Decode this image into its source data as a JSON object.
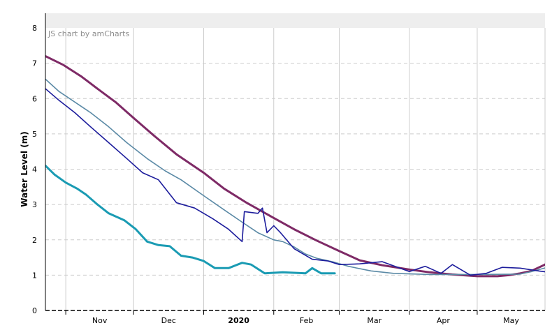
{
  "credit": "JS chart by amCharts",
  "chart_data": {
    "type": "line",
    "title": "",
    "xlabel": "",
    "ylabel": "Water Level (m)",
    "ylim": [
      0,
      8
    ],
    "yticks": [
      0,
      1,
      2,
      3,
      4,
      5,
      6,
      7,
      8
    ],
    "xlim": [
      "2019-10-23",
      "2020-05-31"
    ],
    "xticks": [
      {
        "date": "2019-11-01",
        "label": "Nov",
        "bold": false
      },
      {
        "date": "2019-12-01",
        "label": "Dec",
        "bold": false
      },
      {
        "date": "2020-01-01",
        "label": "2020",
        "bold": true
      },
      {
        "date": "2020-02-01",
        "label": "Feb",
        "bold": false
      },
      {
        "date": "2020-03-01",
        "label": "Mar",
        "bold": false
      },
      {
        "date": "2020-04-01",
        "label": "Apr",
        "bold": false
      },
      {
        "date": "2020-05-01",
        "label": "May",
        "bold": false
      }
    ],
    "grid": true,
    "legend": "none",
    "colors": {
      "grid": "#cccccc",
      "header_band": "#eeeeee",
      "axis": "#000000"
    },
    "series": [
      {
        "color": "#7e2a66",
        "width": 3,
        "points": [
          [
            "2019-10-23",
            7.2
          ],
          [
            "2019-10-31",
            6.95
          ],
          [
            "2019-11-08",
            6.62
          ],
          [
            "2019-11-15",
            6.28
          ],
          [
            "2019-11-23",
            5.9
          ],
          [
            "2019-12-01",
            5.45
          ],
          [
            "2019-12-10",
            4.95
          ],
          [
            "2019-12-20",
            4.42
          ],
          [
            "2020-01-01",
            3.9
          ],
          [
            "2020-01-10",
            3.45
          ],
          [
            "2020-01-20",
            3.05
          ],
          [
            "2020-02-01",
            2.62
          ],
          [
            "2020-02-10",
            2.3
          ],
          [
            "2020-02-20",
            1.98
          ],
          [
            "2020-03-01",
            1.68
          ],
          [
            "2020-03-10",
            1.42
          ],
          [
            "2020-03-20",
            1.28
          ],
          [
            "2020-04-01",
            1.16
          ],
          [
            "2020-04-10",
            1.08
          ],
          [
            "2020-04-20",
            1.02
          ],
          [
            "2020-05-01",
            0.97
          ],
          [
            "2020-05-10",
            0.97
          ],
          [
            "2020-05-15",
            1.0
          ],
          [
            "2020-05-20",
            1.05
          ],
          [
            "2020-05-25",
            1.12
          ],
          [
            "2020-05-31",
            1.3
          ],
          [
            "2020-06-05",
            1.58
          ]
        ]
      },
      {
        "color": "#5b8aa6",
        "width": 1.6,
        "points": [
          [
            "2019-10-23",
            6.55
          ],
          [
            "2019-10-29",
            6.2
          ],
          [
            "2019-11-05",
            5.9
          ],
          [
            "2019-11-12",
            5.6
          ],
          [
            "2019-11-20",
            5.2
          ],
          [
            "2019-11-28",
            4.75
          ],
          [
            "2019-12-07",
            4.3
          ],
          [
            "2019-12-15",
            3.95
          ],
          [
            "2019-12-22",
            3.7
          ],
          [
            "2020-01-01",
            3.25
          ],
          [
            "2020-01-10",
            2.85
          ],
          [
            "2020-01-18",
            2.5
          ],
          [
            "2020-01-25",
            2.2
          ],
          [
            "2020-02-01",
            2.0
          ],
          [
            "2020-02-05",
            1.95
          ],
          [
            "2020-02-10",
            1.8
          ],
          [
            "2020-02-15",
            1.6
          ],
          [
            "2020-02-20",
            1.48
          ],
          [
            "2020-02-27",
            1.38
          ],
          [
            "2020-03-05",
            1.25
          ],
          [
            "2020-03-15",
            1.12
          ],
          [
            "2020-03-25",
            1.05
          ],
          [
            "2020-04-10",
            1.02
          ],
          [
            "2020-04-30",
            1.02
          ],
          [
            "2020-05-20",
            1.03
          ],
          [
            "2020-05-25",
            1.1
          ],
          [
            "2020-06-01",
            1.22
          ],
          [
            "2020-06-05",
            1.25
          ]
        ]
      },
      {
        "color": "#1c1c9c",
        "width": 1.6,
        "points": [
          [
            "2019-10-23",
            6.28
          ],
          [
            "2019-10-29",
            5.95
          ],
          [
            "2019-11-05",
            5.6
          ],
          [
            "2019-11-12",
            5.2
          ],
          [
            "2019-11-20",
            4.75
          ],
          [
            "2019-11-28",
            4.3
          ],
          [
            "2019-12-05",
            3.9
          ],
          [
            "2019-12-12",
            3.7
          ],
          [
            "2019-12-20",
            3.05
          ],
          [
            "2019-12-28",
            2.9
          ],
          [
            "2020-01-05",
            2.6
          ],
          [
            "2020-01-12",
            2.3
          ],
          [
            "2020-01-18",
            1.95
          ],
          [
            "2020-01-19",
            2.8
          ],
          [
            "2020-01-25",
            2.75
          ],
          [
            "2020-01-27",
            2.9
          ],
          [
            "2020-01-29",
            2.2
          ],
          [
            "2020-02-01",
            2.4
          ],
          [
            "2020-02-04",
            2.2
          ],
          [
            "2020-02-10",
            1.75
          ],
          [
            "2020-02-18",
            1.45
          ],
          [
            "2020-02-25",
            1.4
          ],
          [
            "2020-03-01",
            1.3
          ],
          [
            "2020-03-10",
            1.32
          ],
          [
            "2020-03-20",
            1.38
          ],
          [
            "2020-04-01",
            1.1
          ],
          [
            "2020-04-08",
            1.25
          ],
          [
            "2020-04-15",
            1.05
          ],
          [
            "2020-04-20",
            1.3
          ],
          [
            "2020-04-28",
            1.0
          ],
          [
            "2020-05-05",
            1.05
          ],
          [
            "2020-05-12",
            1.22
          ],
          [
            "2020-05-20",
            1.2
          ],
          [
            "2020-05-28",
            1.12
          ],
          [
            "2020-06-05",
            1.05
          ]
        ]
      },
      {
        "color": "#1a9bb3",
        "width": 3,
        "points": [
          [
            "2019-10-23",
            4.1
          ],
          [
            "2019-10-27",
            3.85
          ],
          [
            "2019-11-01",
            3.62
          ],
          [
            "2019-11-06",
            3.45
          ],
          [
            "2019-11-10",
            3.28
          ],
          [
            "2019-11-15",
            3.0
          ],
          [
            "2019-11-20",
            2.75
          ],
          [
            "2019-11-27",
            2.55
          ],
          [
            "2019-12-02",
            2.3
          ],
          [
            "2019-12-07",
            1.95
          ],
          [
            "2019-12-12",
            1.85
          ],
          [
            "2019-12-17",
            1.82
          ],
          [
            "2019-12-22",
            1.55
          ],
          [
            "2019-12-27",
            1.5
          ],
          [
            "2020-01-01",
            1.4
          ],
          [
            "2020-01-06",
            1.2
          ],
          [
            "2020-01-12",
            1.2
          ],
          [
            "2020-01-18",
            1.35
          ],
          [
            "2020-01-22",
            1.3
          ],
          [
            "2020-01-28",
            1.05
          ],
          [
            "2020-02-05",
            1.08
          ],
          [
            "2020-02-15",
            1.05
          ],
          [
            "2020-02-18",
            1.2
          ],
          [
            "2020-02-22",
            1.05
          ],
          [
            "2020-02-28",
            1.05
          ]
        ]
      }
    ]
  }
}
